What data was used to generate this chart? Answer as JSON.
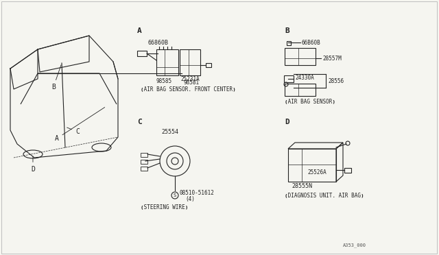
{
  "bg_color": "#f5f5f0",
  "line_color": "#222222",
  "title": "",
  "page_ref": "A353_000",
  "sections": {
    "A_label": "A",
    "B_label": "B",
    "C_label": "C",
    "D_label": "D"
  },
  "section_A": {
    "title": "<AIR BAG SENSOR. FRONT CENTER>",
    "parts": [
      "66860B",
      "25231A",
      "98585",
      "98581"
    ]
  },
  "section_B": {
    "title": "<AIR BAG SENSOR>",
    "parts": [
      "66B60B",
      "28557M",
      "24330A",
      "28556"
    ]
  },
  "section_C": {
    "title": "<STEERING WIRE>",
    "parts": [
      "25554",
      "08510-51612",
      "(4)"
    ]
  },
  "section_D": {
    "title": "<DIAGNOSIS UNIT. AIR BAG>",
    "parts": [
      "25526A",
      "28555N"
    ]
  },
  "car_labels": [
    "A",
    "B",
    "C",
    "D"
  ]
}
